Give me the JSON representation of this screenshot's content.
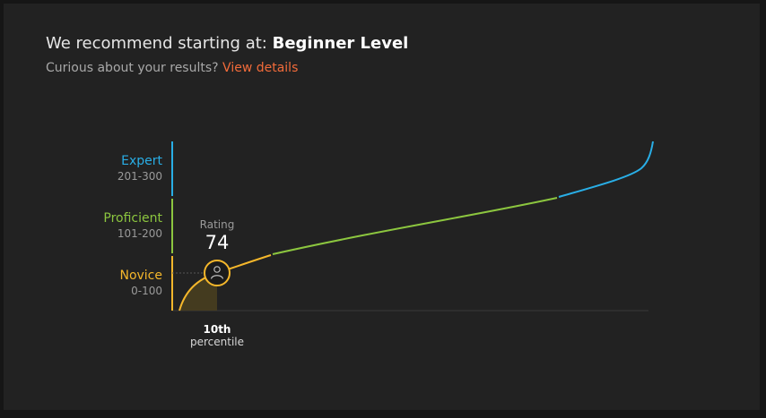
{
  "header": {
    "prefix": "We recommend starting at:",
    "level": "Beginner Level"
  },
  "subheader": {
    "question": "Curious about your results?",
    "link_label": "View details"
  },
  "colors": {
    "expert": "#29aee6",
    "proficient": "#8cc63f",
    "novice": "#f5b72b",
    "link": "#f26b3a"
  },
  "tiers": [
    {
      "name": "Expert",
      "range": "201-300"
    },
    {
      "name": "Proficient",
      "range": "101-200"
    },
    {
      "name": "Novice",
      "range": "0-100"
    }
  ],
  "marker": {
    "rating_label": "Rating",
    "rating_value": "74",
    "percentile_value": "10th",
    "percentile_label": "percentile",
    "icon": "user-icon"
  }
}
